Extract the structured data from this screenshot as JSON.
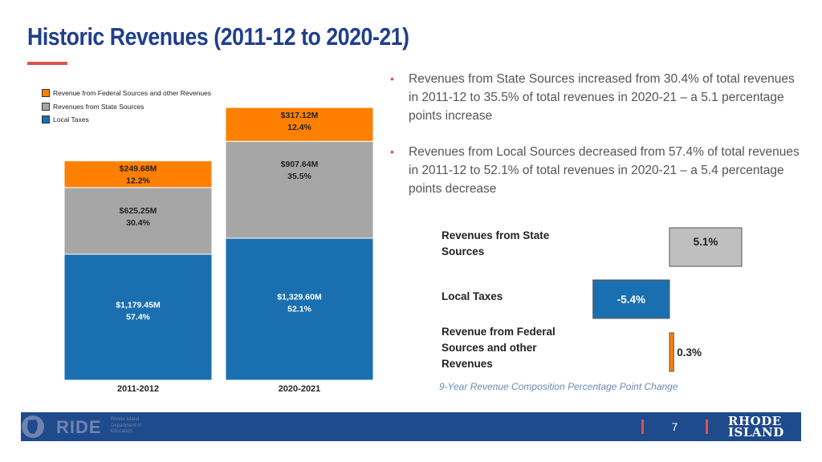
{
  "title": "Historic Revenues (2011-12 to 2020-21)",
  "colors": {
    "federal": "#ff8000",
    "state": "#a6a6a6",
    "local": "#1a6fb0",
    "accent": "#e0524f",
    "title": "#1f3f8c",
    "footer": "#1f4a8c"
  },
  "legend": [
    {
      "label": "Revenue from Federal Sources and other Revenues",
      "color": "#ff8000"
    },
    {
      "label": "Revenues from State Sources",
      "color": "#a6a6a6"
    },
    {
      "label": "Local Taxes",
      "color": "#1a6fb0"
    }
  ],
  "bullets": [
    "Revenues from State Sources increased from 30.4% of total revenues in 2011-12 to 35.5% of total revenues in 2020-21 – a 5.1 percentage points increase",
    "Revenues from Local Sources decreased from 57.4% of total revenues in 2011-12 to 52.1% of total revenues in 2020-21 – a 5.4 percentage points decrease"
  ],
  "chart_data": [
    {
      "type": "bar",
      "stacked": true,
      "categories": [
        "2011-2012",
        "2020-2021"
      ],
      "series": [
        {
          "name": "Local Taxes",
          "values": [
            1179.45,
            1329.6
          ],
          "labels": [
            "$1,179.45M",
            "$1,329.60M"
          ],
          "percents": [
            "57.4%",
            "52.1%"
          ]
        },
        {
          "name": "Revenues from State Sources",
          "values": [
            625.25,
            907.64
          ],
          "labels": [
            "$625.25M",
            "$907.64M"
          ],
          "percents": [
            "30.4%",
            "35.5%"
          ]
        },
        {
          "name": "Revenue from Federal Sources and other Revenues",
          "values": [
            249.68,
            317.12
          ],
          "labels": [
            "$249.68M",
            "$317.12M"
          ],
          "percents": [
            "12.2%",
            "12.4%"
          ]
        }
      ],
      "ylim": [
        0,
        2554.36
      ],
      "grid": false,
      "legend_position": "top-left"
    },
    {
      "type": "bar",
      "orientation": "horizontal",
      "categories": [
        [
          "Revenues from State",
          "Sources"
        ],
        [
          "Local Taxes"
        ],
        [
          "Revenue from Federal",
          "Sources and other",
          "Revenues"
        ]
      ],
      "values": [
        5.1,
        -5.4,
        0.3
      ],
      "value_labels": [
        "5.1%",
        "-5.4%",
        "0.3%"
      ],
      "colors": [
        "#bfbfbf",
        "#1a6fb0",
        "#ff8000"
      ],
      "caption": "9-Year Revenue Composition Percentage Point Change",
      "xlim": [
        -5.4,
        5.1
      ],
      "grid": false
    }
  ],
  "footer": {
    "org": "RIDE",
    "org_sub": "Rhode Island Department of Education",
    "page": "7",
    "state": [
      "RHODE",
      "ISLAND"
    ]
  }
}
